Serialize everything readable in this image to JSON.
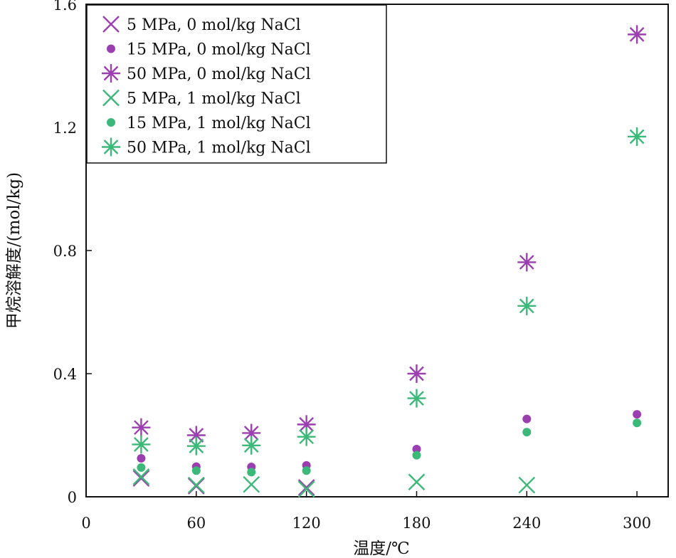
{
  "chart_data": {
    "type": "scatter",
    "xlabel": "温度/℃",
    "ylabel": "甲烷溶解度/(mol/kg)",
    "xlim": [
      0,
      317
    ],
    "ylim": [
      0,
      1.6
    ],
    "xticks": [
      0,
      60,
      120,
      180,
      240,
      300
    ],
    "yticks": [
      0,
      0.4,
      0.8,
      1.2,
      1.6
    ],
    "xtick_labels": [
      "0",
      "60",
      "120",
      "180",
      "240",
      "300"
    ],
    "ytick_labels": [
      "0",
      "0.4",
      "0.8",
      "1.2",
      "1.6"
    ],
    "grid": false,
    "legend_position": "top-left",
    "series": [
      {
        "name": "5 MPa, 0 mol/kg NaCl",
        "marker": "x",
        "color": "#9b3fb0",
        "points": [
          [
            30,
            0.06
          ],
          [
            60,
            0.035
          ],
          [
            120,
            0.03
          ]
        ]
      },
      {
        "name": "15 MPa, 0 mol/kg NaCl",
        "marker": "dot",
        "color": "#9b3fb0",
        "points": [
          [
            30,
            0.125
          ],
          [
            60,
            0.098
          ],
          [
            90,
            0.097
          ],
          [
            120,
            0.102
          ],
          [
            180,
            0.155
          ],
          [
            240,
            0.253
          ],
          [
            300,
            0.268
          ]
        ]
      },
      {
        "name": "50 MPa, 0 mol/kg NaCl",
        "marker": "star",
        "color": "#9b3fb0",
        "points": [
          [
            30,
            0.225
          ],
          [
            60,
            0.2
          ],
          [
            90,
            0.207
          ],
          [
            120,
            0.235
          ],
          [
            180,
            0.4
          ],
          [
            240,
            0.762
          ],
          [
            300,
            1.502
          ]
        ]
      },
      {
        "name": "5 MPa, 1 mol/kg NaCl",
        "marker": "x",
        "color": "#3cb878",
        "points": [
          [
            30,
            0.065
          ],
          [
            60,
            0.038
          ],
          [
            90,
            0.04
          ],
          [
            120,
            0.025
          ],
          [
            180,
            0.048
          ],
          [
            240,
            0.038
          ]
        ]
      },
      {
        "name": "15 MPa, 1 mol/kg NaCl",
        "marker": "dot",
        "color": "#3cb878",
        "points": [
          [
            30,
            0.095
          ],
          [
            60,
            0.085
          ],
          [
            90,
            0.08
          ],
          [
            120,
            0.085
          ],
          [
            180,
            0.135
          ],
          [
            240,
            0.21
          ],
          [
            300,
            0.24
          ]
        ]
      },
      {
        "name": "50 MPa, 1 mol/kg NaCl",
        "marker": "star",
        "color": "#3cb878",
        "points": [
          [
            30,
            0.17
          ],
          [
            60,
            0.165
          ],
          [
            90,
            0.167
          ],
          [
            120,
            0.195
          ],
          [
            180,
            0.32
          ],
          [
            240,
            0.62
          ],
          [
            300,
            1.17
          ]
        ]
      }
    ]
  }
}
